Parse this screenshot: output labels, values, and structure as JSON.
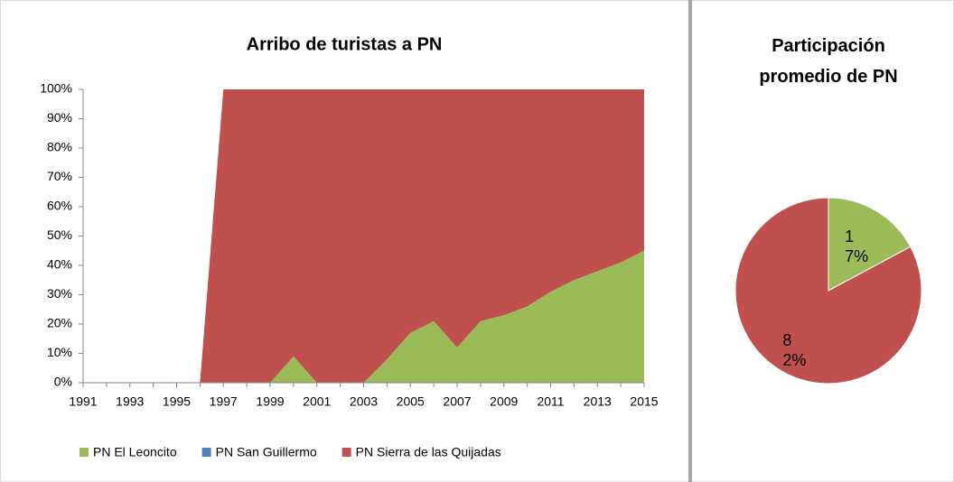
{
  "chart_data": [
    {
      "type": "area",
      "title": "Arribo de turistas a PN",
      "x": [
        1991,
        1992,
        1993,
        1994,
        1995,
        1996,
        1997,
        1998,
        1999,
        2000,
        2001,
        2002,
        2003,
        2004,
        2005,
        2006,
        2007,
        2008,
        2009,
        2010,
        2011,
        2012,
        2013,
        2014,
        2015
      ],
      "xlim": [
        1991,
        2015
      ],
      "xticks": [
        1991,
        1993,
        1995,
        1997,
        1999,
        2001,
        2003,
        2005,
        2007,
        2009,
        2011,
        2013,
        2015
      ],
      "ylim": [
        0,
        100
      ],
      "yticks": [
        {
          "value": 0,
          "label": "0%"
        },
        {
          "value": 10,
          "label": "10%"
        },
        {
          "value": 20,
          "label": "20%"
        },
        {
          "value": 30,
          "label": "30%"
        },
        {
          "value": 40,
          "label": "40%"
        },
        {
          "value": 50,
          "label": "50%"
        },
        {
          "value": 60,
          "label": "60%"
        },
        {
          "value": 70,
          "label": "70%"
        },
        {
          "value": 80,
          "label": "80%"
        },
        {
          "value": 90,
          "label": "90%"
        },
        {
          "value": 100,
          "label": "100%"
        }
      ],
      "stacked": true,
      "legend": "bottom",
      "series": [
        {
          "name": "PN El Leoncito",
          "color": "#9bbb59",
          "values": [
            0,
            0,
            0,
            0,
            0,
            0,
            0,
            0,
            0,
            9,
            0,
            0,
            0,
            8,
            17,
            21,
            12,
            21,
            23,
            26,
            31,
            35,
            38,
            41,
            45
          ]
        },
        {
          "name": "PN San Guillermo",
          "color": "#4f81bd",
          "values": [
            0,
            0,
            0,
            0,
            0,
            0,
            0,
            0,
            0,
            0,
            0,
            0,
            0,
            0,
            0,
            0,
            0,
            0,
            0,
            0,
            0,
            0,
            0,
            0,
            0
          ]
        },
        {
          "name": "PN Sierra de las Quijadas",
          "color": "#c0504d",
          "values": [
            0,
            0,
            0,
            0,
            0,
            0,
            100,
            100,
            100,
            91,
            100,
            100,
            100,
            92,
            83,
            79,
            88,
            79,
            77,
            74,
            69,
            65,
            62,
            59,
            55
          ]
        }
      ]
    },
    {
      "type": "pie",
      "title": "Participación promedio de PN",
      "values": [
        17,
        82
      ],
      "value_labels": [
        "17%",
        "82%"
      ],
      "colors": [
        "#9bbb59",
        "#c0504d"
      ]
    }
  ]
}
